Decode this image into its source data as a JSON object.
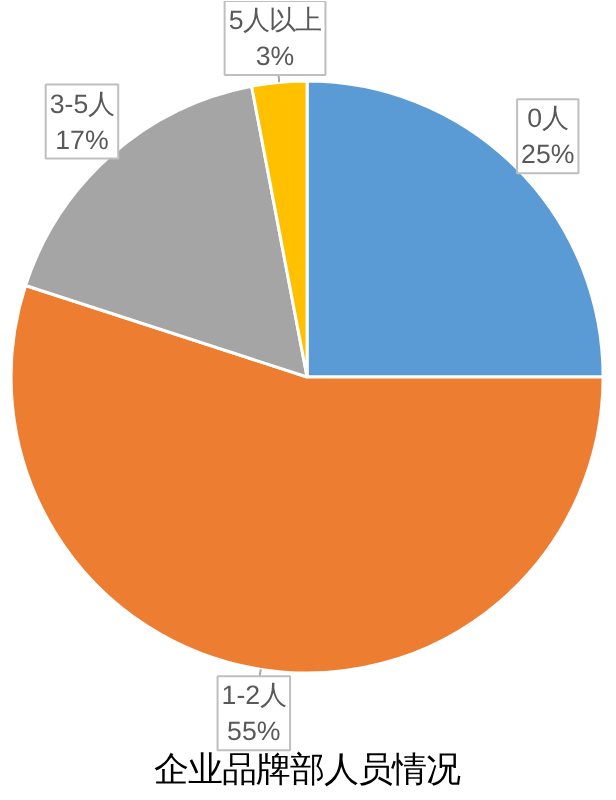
{
  "chart_data": {
    "type": "pie",
    "title": "企业品牌部人员情况",
    "categories": [
      "0人",
      "1-2人",
      "3-5人",
      "5人以上"
    ],
    "values": [
      25,
      55,
      17,
      3
    ],
    "colors": [
      "#5b9bd5",
      "#ed7d31",
      "#a5a5a5",
      "#ffc000"
    ],
    "value_labels": [
      "25%",
      "55%",
      "17%",
      "3%"
    ]
  }
}
